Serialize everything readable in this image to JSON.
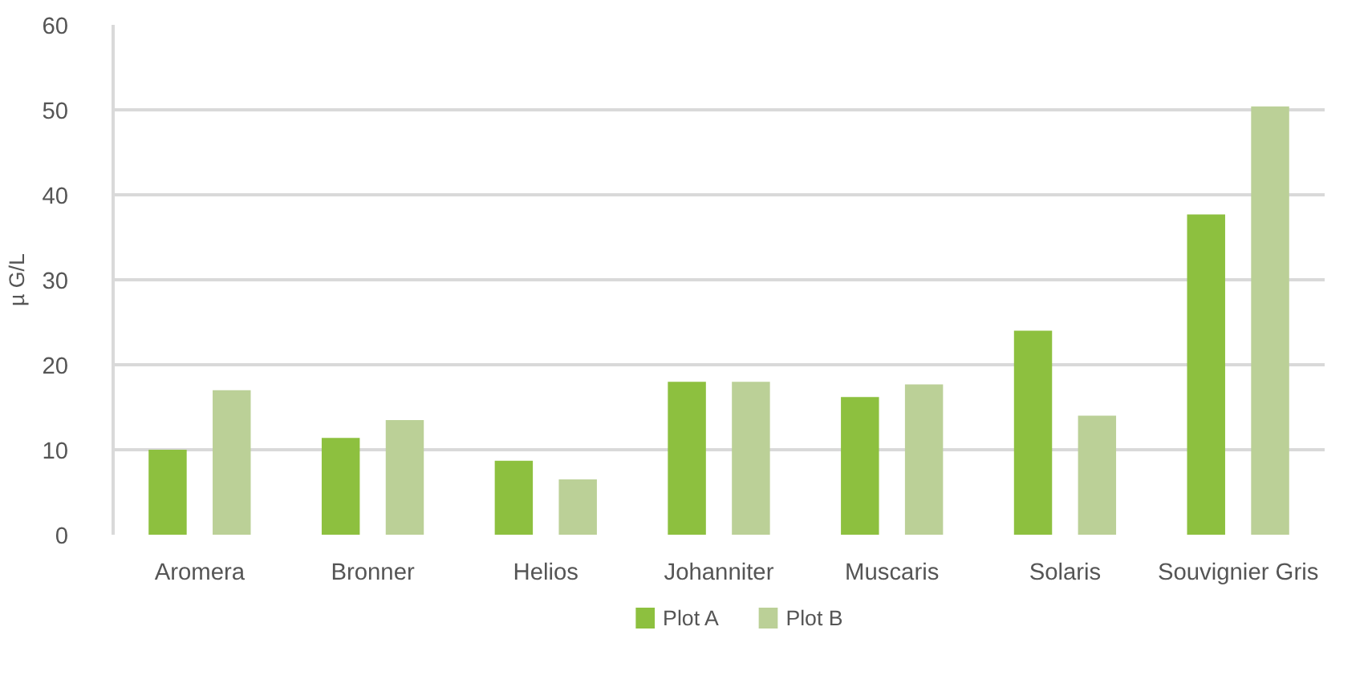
{
  "chart_data": {
    "type": "bar",
    "ylabel": "µ G/L",
    "categories": [
      "Aromera",
      "Bronner",
      "Helios",
      "Johanniter",
      "Muscaris",
      "Solaris",
      "Souvignier Gris"
    ],
    "series": [
      {
        "name": "Plot A",
        "color": "#8dc03f",
        "values": [
          10,
          11.4,
          8.7,
          18,
          16.2,
          24,
          37.7
        ]
      },
      {
        "name": "Plot B",
        "color": "#bbd097",
        "values": [
          17,
          13.5,
          6.5,
          18,
          17.7,
          14,
          50.4
        ]
      }
    ],
    "ylim": [
      0,
      60
    ],
    "yticks": [
      0,
      10,
      20,
      30,
      40,
      50,
      60
    ],
    "grid": "y",
    "legend": "bottom"
  }
}
